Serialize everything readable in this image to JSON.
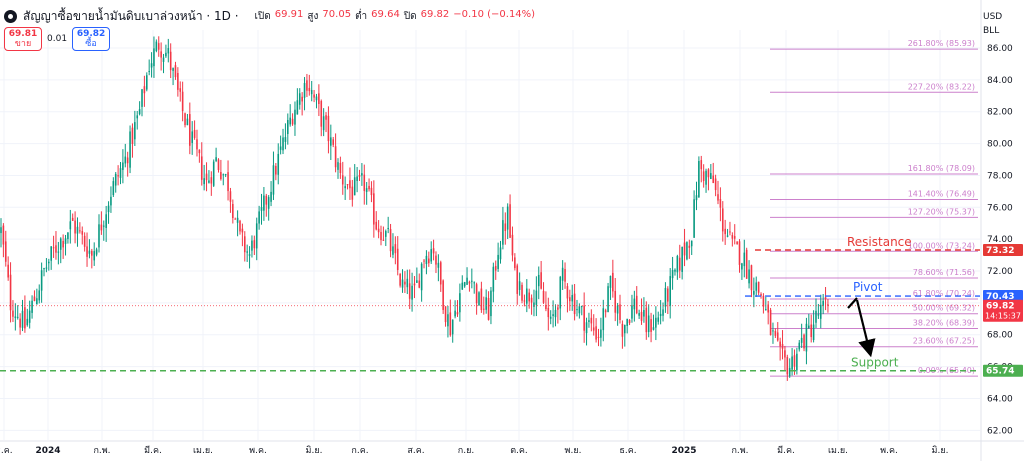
{
  "header": {
    "symbol_title": "สัญญาซื้อขายน้ำมันดิบเบาล่วงหน้า · 1D ·",
    "open_label": "เปิด",
    "open_value": "69.91",
    "high_label": "สูง",
    "high_value": "70.05",
    "low_label": "ต่ำ",
    "low_value": "69.64",
    "close_label": "ปิด",
    "close_value": "69.82",
    "change": "−0.10 (−0.14%)",
    "sell_price": "69.81",
    "sell_label": "ขาย",
    "spread": "0.01",
    "buy_price": "69.82",
    "buy_label": "ซื้อ",
    "currency": "USD",
    "unit": "BLL"
  },
  "colors": {
    "up": "#089981",
    "down": "#f23645",
    "fib": "#cc80cc",
    "support": "#4caf50",
    "resistance": "#e53935",
    "pivot": "#2962ff",
    "axis_text": "#131722",
    "grid": "#f0f3fa"
  },
  "chart_data": {
    "type": "candlestick",
    "title": "สัญญาซื้อขายน้ำมันดิบเบาล่วงหน้า · 1D",
    "x_tick_labels": [
      "ธ.ค.",
      "2024",
      "ก.พ.",
      "มี.ค.",
      "เม.ย.",
      "พ.ค.",
      "มิ.ย.",
      "ก.ค.",
      "ส.ค.",
      "ก.ย.",
      "ต.ค.",
      "พ.ย.",
      "ธ.ค.",
      "2025",
      "ก.พ.",
      "มี.ค.",
      "เม.ย.",
      "พ.ค.",
      "มิ.ย."
    ],
    "y_ticks": [
      "62.00",
      "64.00",
      "66.00",
      "68.00",
      "70.00",
      "72.00",
      "74.00",
      "76.00",
      "78.00",
      "80.00",
      "82.00",
      "84.00",
      "86.00"
    ],
    "ylim": [
      61.5,
      86.6
    ],
    "price_path_anchors": [
      [
        0,
        74.5
      ],
      [
        4,
        70.0
      ],
      [
        10,
        68.5
      ],
      [
        18,
        72.0
      ],
      [
        23,
        73.5
      ],
      [
        30,
        75.0
      ],
      [
        38,
        73.0
      ],
      [
        46,
        77.0
      ],
      [
        52,
        79.0
      ],
      [
        58,
        82.0
      ],
      [
        62,
        85.0
      ],
      [
        66,
        86.3
      ],
      [
        70,
        85.5
      ],
      [
        75,
        82.5
      ],
      [
        80,
        80.0
      ],
      [
        86,
        77.5
      ],
      [
        90,
        79.0
      ],
      [
        95,
        77.5
      ],
      [
        100,
        74.0
      ],
      [
        104,
        73.0
      ],
      [
        110,
        76.0
      ],
      [
        116,
        79.0
      ],
      [
        122,
        82.0
      ],
      [
        128,
        84.0
      ],
      [
        133,
        82.0
      ],
      [
        137,
        80.5
      ],
      [
        142,
        78.0
      ],
      [
        147,
        77.0
      ],
      [
        152,
        77.5
      ],
      [
        157,
        75.0
      ],
      [
        162,
        74.0
      ],
      [
        168,
        71.0
      ],
      [
        173,
        70.5
      ],
      [
        177,
        73.0
      ],
      [
        181,
        73.5
      ],
      [
        186,
        69.5
      ],
      [
        188,
        68.5
      ],
      [
        192,
        70.5
      ],
      [
        196,
        72.0
      ],
      [
        200,
        70.0
      ],
      [
        204,
        69.5
      ],
      [
        208,
        73.5
      ],
      [
        212,
        75.5
      ],
      [
        215,
        71.5
      ],
      [
        220,
        70.5
      ],
      [
        225,
        71.0
      ],
      [
        230,
        68.5
      ],
      [
        235,
        71.5
      ],
      [
        240,
        70.0
      ],
      [
        245,
        68.8
      ],
      [
        250,
        68.0
      ],
      [
        255,
        71.0
      ],
      [
        260,
        68.5
      ],
      [
        265,
        70.0
      ],
      [
        270,
        68.5
      ],
      [
        275,
        69.0
      ],
      [
        280,
        71.0
      ],
      [
        285,
        73.0
      ],
      [
        289,
        74.5
      ],
      [
        292,
        78.5
      ],
      [
        295,
        78.0
      ],
      [
        298,
        77.5
      ],
      [
        302,
        75.0
      ],
      [
        306,
        73.5
      ],
      [
        310,
        73.0
      ],
      [
        314,
        71.5
      ],
      [
        318,
        70.5
      ],
      [
        322,
        68.3
      ],
      [
        326,
        66.5
      ],
      [
        330,
        66.0
      ],
      [
        334,
        67.3
      ],
      [
        338,
        68.2
      ],
      [
        342,
        69.3
      ],
      [
        346,
        69.82
      ]
    ],
    "total_bars": 347,
    "current_price": {
      "label": "69.82",
      "countdown": "14:15:37"
    },
    "levels": [
      {
        "name": "fib-261.8",
        "label": "261.80% (85.93)",
        "price": 85.93,
        "kind": "fib"
      },
      {
        "name": "fib-227.2",
        "label": "227.20% (83.22)",
        "price": 83.22,
        "kind": "fib"
      },
      {
        "name": "fib-161.8",
        "label": "161.80% (78.09)",
        "price": 78.09,
        "kind": "fib"
      },
      {
        "name": "fib-141.4",
        "label": "141.40% (76.49)",
        "price": 76.49,
        "kind": "fib"
      },
      {
        "name": "fib-127.2",
        "label": "127.20% (75.37)",
        "price": 75.37,
        "kind": "fib"
      },
      {
        "name": "fib-100",
        "label": "100.00% (73.24)",
        "price": 73.24,
        "kind": "fib"
      },
      {
        "name": "fib-78.6",
        "label": "78.60% (71.56)",
        "price": 71.56,
        "kind": "fib"
      },
      {
        "name": "fib-61.8",
        "label": "61.80% (70.24)",
        "price": 70.24,
        "kind": "fib"
      },
      {
        "name": "fib-50",
        "label": "50.00% (69.32)",
        "price": 69.32,
        "kind": "fib"
      },
      {
        "name": "fib-38.2",
        "label": "38.20% (68.39)",
        "price": 68.39,
        "kind": "fib"
      },
      {
        "name": "fib-23.6",
        "label": "23.60% (67.25)",
        "price": 67.25,
        "kind": "fib"
      },
      {
        "name": "fib-0",
        "label": "0.00% (65.40)",
        "price": 65.4,
        "kind": "fib"
      }
    ],
    "annotations": {
      "resistance": {
        "label": "Resistance",
        "price": 73.32,
        "badge": "73.32"
      },
      "pivot": {
        "label": "Pivot",
        "price": 70.43,
        "badge": "70.43"
      },
      "support": {
        "label": "Support",
        "price": 65.74,
        "badge": "65.74"
      }
    }
  }
}
